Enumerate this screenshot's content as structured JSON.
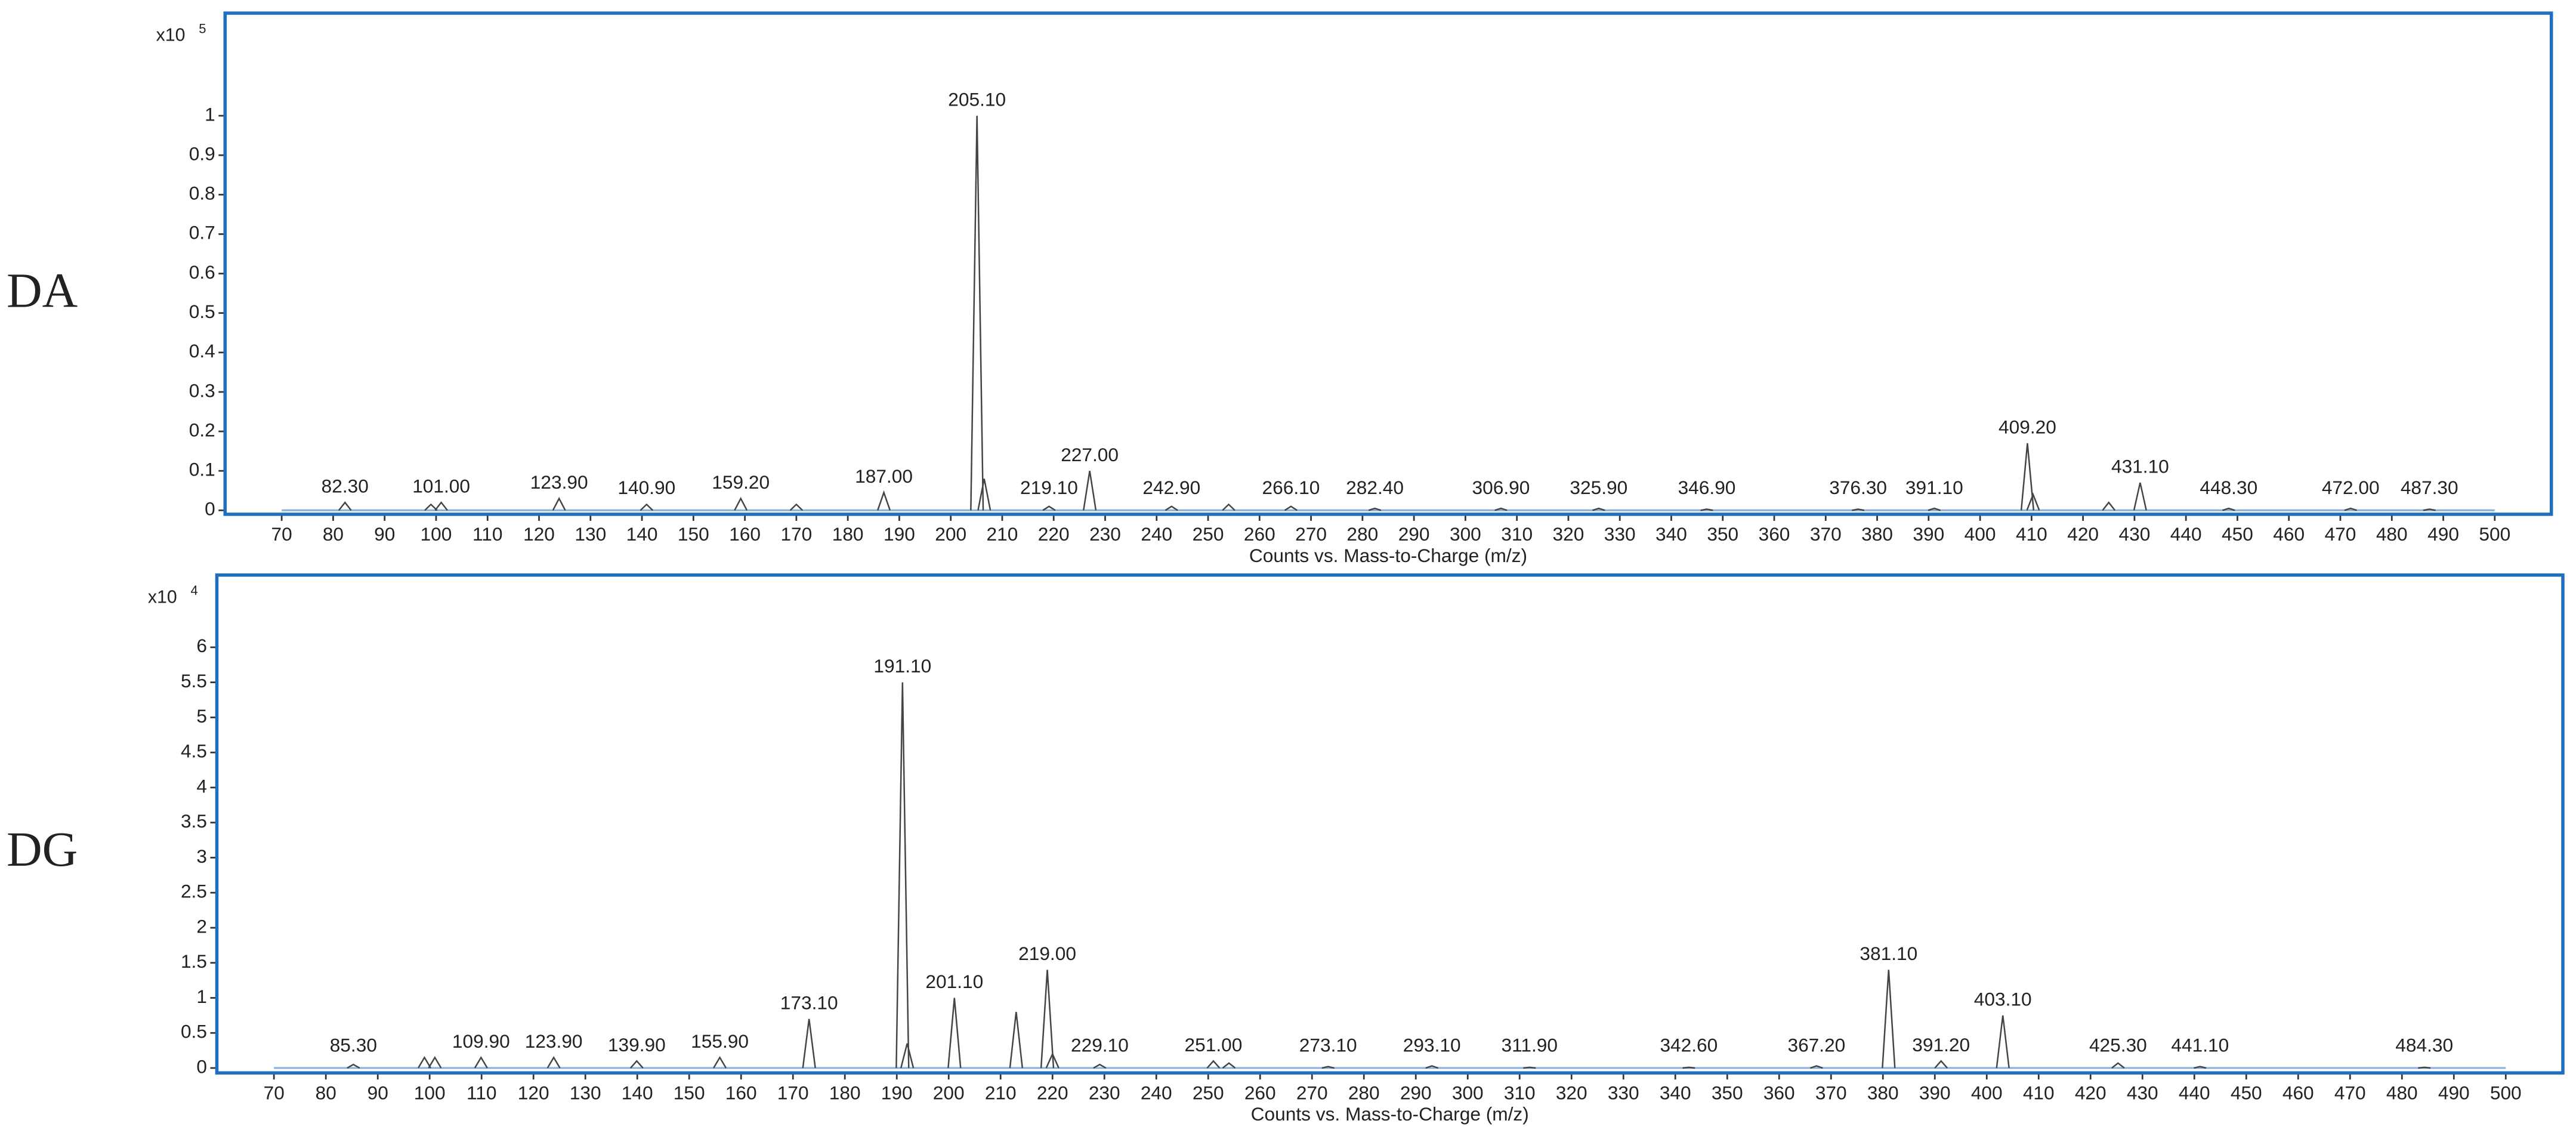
{
  "chart_data": [
    {
      "type": "stem",
      "side_label": "DA",
      "multiplier": "x10",
      "exponent": "5",
      "xlabel": "Counts vs. Mass-to-Charge (m/z)",
      "color": "#444444",
      "frame_color": "#1f6fc1",
      "x": [
        82.3,
        99,
        101.0,
        123.9,
        140.9,
        159.2,
        170,
        187.0,
        205.1,
        206.5,
        219.1,
        227.0,
        242.9,
        254,
        266.1,
        282.4,
        306.9,
        325.9,
        346.9,
        376.3,
        391.1,
        409.2,
        410.3,
        425,
        431.1,
        448.3,
        472.0,
        487.3
      ],
      "values": [
        0.02,
        0.015,
        0.02,
        0.03,
        0.015,
        0.03,
        0.015,
        0.045,
        1.0,
        0.08,
        0.01,
        0.1,
        0.01,
        0.015,
        0.01,
        0.005,
        0.005,
        0.005,
        0.003,
        0.003,
        0.005,
        0.17,
        0.04,
        0.02,
        0.07,
        0.005,
        0.005,
        0.003
      ],
      "value_labels": [
        "82.30",
        null,
        "101.00",
        "123.90",
        "140.90",
        "159.20",
        null,
        "187.00",
        "205.10",
        null,
        "219.10",
        "227.00",
        "242.90",
        null,
        "266.10",
        "282.40",
        "306.90",
        "325.90",
        "346.90",
        "376.30",
        "391.10",
        "409.20",
        null,
        null,
        "431.10",
        "448.30",
        "472.00",
        "487.30"
      ],
      "xlim": [
        59,
        511
      ],
      "ylim": [
        -0.01,
        1.26
      ],
      "xticks": [
        70,
        80,
        90,
        100,
        110,
        120,
        130,
        140,
        150,
        160,
        170,
        180,
        190,
        200,
        210,
        220,
        230,
        240,
        250,
        260,
        270,
        280,
        290,
        300,
        310,
        320,
        330,
        340,
        350,
        360,
        370,
        380,
        390,
        400,
        410,
        420,
        430,
        440,
        450,
        460,
        470,
        480,
        490,
        500
      ],
      "yticks": [
        0,
        0.1,
        0.2,
        0.3,
        0.4,
        0.5,
        0.6,
        0.7,
        0.8,
        0.9,
        1
      ]
    },
    {
      "type": "stem",
      "side_label": "DG",
      "multiplier": "x10",
      "exponent": "4",
      "xlabel": "Counts vs. Mass-to-Charge (m/z)",
      "color": "#444444",
      "frame_color": "#1f6fc1",
      "x": [
        85.3,
        99,
        101,
        109.9,
        123.9,
        139.9,
        155.9,
        173.1,
        191.1,
        192,
        201.1,
        213,
        219.0,
        220,
        229.1,
        251.0,
        254,
        273.1,
        293.1,
        311.9,
        342.6,
        367.2,
        381.1,
        391.2,
        403.1,
        425.3,
        441.1,
        484.3
      ],
      "values": [
        0.05,
        0.15,
        0.15,
        0.15,
        0.15,
        0.1,
        0.15,
        0.7,
        5.5,
        0.35,
        1.0,
        0.8,
        1.4,
        0.2,
        0.05,
        0.1,
        0.07,
        0.02,
        0.03,
        0.01,
        0.01,
        0.03,
        1.4,
        0.1,
        0.75,
        0.07,
        0.02,
        0.01
      ],
      "value_labels": [
        "85.30",
        null,
        null,
        "109.90",
        "123.90",
        "139.90",
        "155.90",
        "173.10",
        "191.10",
        null,
        "201.10",
        null,
        "219.00",
        null,
        "229.10",
        "251.00",
        null,
        "273.10",
        "293.10",
        "311.90",
        "342.60",
        "367.20",
        "381.10",
        "391.20",
        "403.10",
        "425.30",
        "441.10",
        "484.30"
      ],
      "xlim": [
        59,
        511
      ],
      "ylim": [
        -0.07,
        7.03
      ],
      "xticks": [
        70,
        80,
        90,
        100,
        110,
        120,
        130,
        140,
        150,
        160,
        170,
        180,
        190,
        200,
        210,
        220,
        230,
        240,
        250,
        260,
        270,
        280,
        290,
        300,
        310,
        320,
        330,
        340,
        350,
        360,
        370,
        380,
        390,
        400,
        410,
        420,
        430,
        440,
        450,
        460,
        470,
        480,
        490,
        500
      ],
      "yticks": [
        0,
        0.5,
        1,
        1.5,
        2,
        2.5,
        3,
        3.5,
        4,
        4.5,
        5,
        5.5,
        6
      ]
    }
  ]
}
